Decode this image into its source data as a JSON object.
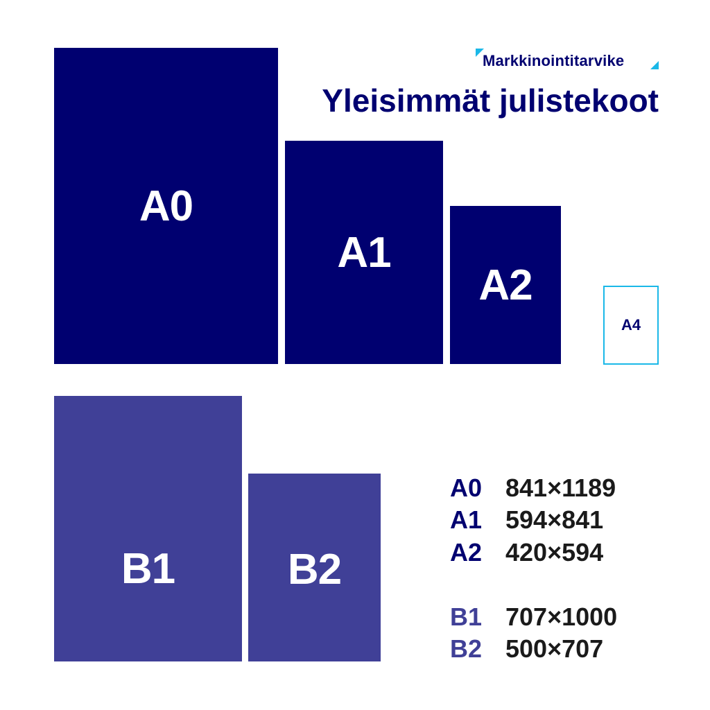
{
  "brand": {
    "name": "Markkinointitarvike"
  },
  "title": "Yleisimmät julistekoot",
  "colors": {
    "a_series": "#000070",
    "b_series": "#404097",
    "accent": "#1ab8e8",
    "text": "#1a1a1a"
  },
  "sheets": {
    "a0": "A0",
    "a1": "A1",
    "a2": "A2",
    "a4": "A4",
    "b1": "B1",
    "b2": "B2"
  },
  "sizes": [
    {
      "label": "A0",
      "value": "841×1189"
    },
    {
      "label": "A1",
      "value": "594×841"
    },
    {
      "label": "A2",
      "value": "420×594"
    },
    {
      "label": "B1",
      "value": "707×1000"
    },
    {
      "label": "B2",
      "value": "500×707"
    }
  ]
}
